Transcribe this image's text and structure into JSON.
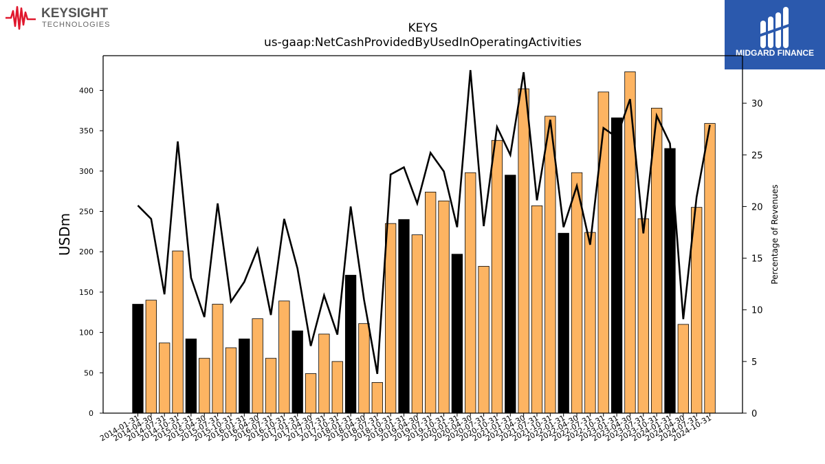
{
  "branding": {
    "left_logo_name": "KEYSIGHT",
    "left_logo_sub": "TECHNOLOGIES",
    "right_logo_name": "MIDGARD FINANCE",
    "left_logo_color": "#e0182d",
    "right_logo_bg": "#2b59ad"
  },
  "chart_data": {
    "type": "bar",
    "title": "KEYS",
    "subtitle": "us-gaap:NetCashProvidedByUsedInOperatingActivities",
    "ylabel": "USDm",
    "y2label": "Percentage of Revenues",
    "ylim": [
      0,
      443
    ],
    "y2lim": [
      0,
      34.6
    ],
    "yticks": [
      0,
      50,
      100,
      150,
      200,
      250,
      300,
      350,
      400
    ],
    "y2ticks": [
      0,
      5,
      10,
      15,
      20,
      25,
      30
    ],
    "categories": [
      "2014-01-31",
      "2014-04-30",
      "2014-07-31",
      "2014-10-31",
      "2015-01-31",
      "2015-04-30",
      "2015-07-31",
      "2015-10-31",
      "2016-01-31",
      "2016-04-30",
      "2016-07-31",
      "2016-10-31",
      "2017-01-31",
      "2017-04-30",
      "2017-07-31",
      "2017-10-31",
      "2018-01-31",
      "2018-04-30",
      "2018-07-31",
      "2018-10-31",
      "2019-01-31",
      "2019-04-30",
      "2019-07-31",
      "2019-10-31",
      "2020-01-31",
      "2020-04-30",
      "2020-07-31",
      "2020-10-31",
      "2021-01-31",
      "2021-04-30",
      "2021-07-31",
      "2021-10-31",
      "2022-01-31",
      "2022-04-30",
      "2022-07-31",
      "2022-10-31",
      "2023-01-31",
      "2023-04-30",
      "2023-07-31",
      "2023-10-31",
      "2024-01-31",
      "2024-04-30",
      "2024-07-31",
      "2024-10-31"
    ],
    "series": [
      {
        "kind": "bar",
        "values": [
          135,
          140,
          87,
          201,
          92,
          68,
          135,
          81,
          92,
          117,
          68,
          139,
          102,
          49,
          98,
          64,
          171,
          111,
          38,
          235,
          240,
          221,
          274,
          263,
          197,
          298,
          182,
          338,
          295,
          402,
          257,
          368,
          223,
          298,
          224,
          398,
          366,
          423,
          241,
          378,
          328,
          110,
          255,
          359
        ],
        "highlight": [
          true,
          false,
          false,
          false,
          true,
          false,
          false,
          false,
          true,
          false,
          false,
          false,
          true,
          false,
          false,
          false,
          true,
          false,
          false,
          false,
          true,
          false,
          false,
          false,
          true,
          false,
          false,
          false,
          true,
          false,
          false,
          false,
          true,
          false,
          false,
          false,
          true,
          false,
          false,
          false,
          true,
          false,
          false,
          false
        ]
      },
      {
        "kind": "line",
        "axis": "right",
        "values": [
          20.1,
          18.8,
          11.5,
          26.3,
          13.1,
          9.3,
          20.3,
          10.8,
          12.7,
          15.9,
          9.5,
          18.8,
          14.0,
          6.5,
          11.4,
          7.6,
          20.0,
          11.0,
          3.8,
          23.1,
          23.8,
          20.3,
          25.2,
          23.4,
          18.0,
          33.2,
          18.1,
          27.7,
          25.0,
          33.0,
          20.6,
          28.4,
          18.0,
          22.0,
          16.3,
          27.6,
          26.7,
          30.4,
          17.4,
          28.8,
          26.1,
          9.1,
          20.9,
          27.9
        ]
      }
    ],
    "colors": {
      "bar_highlight": "#000000",
      "bar_normal": "#fdb462",
      "bar_edge": "#000000",
      "line": "#000000"
    }
  }
}
